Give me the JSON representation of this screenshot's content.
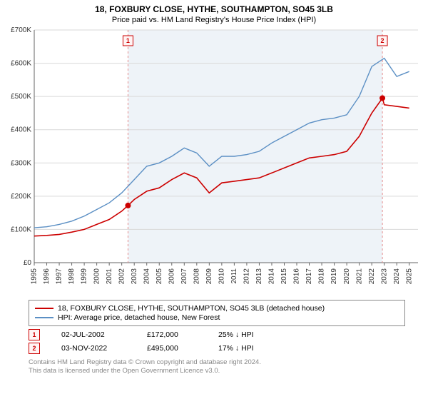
{
  "title_main": "18, FOXBURY CLOSE, HYTHE, SOUTHAMPTON, SO45 3LB",
  "title_sub": "Price paid vs. HM Land Registry's House Price Index (HPI)",
  "chart": {
    "type": "line",
    "background_color": "#ffffff",
    "shaded_band": {
      "x_start": 2002.5,
      "x_end": 2022.85,
      "color": "#eef3f8"
    },
    "grid_color": "#d9d9d9",
    "axis_color": "#666666",
    "axis_font_size": 10,
    "xlim": [
      1995,
      2025.7
    ],
    "x_ticks": [
      1995,
      1996,
      1997,
      1998,
      1999,
      2000,
      2001,
      2002,
      2003,
      2004,
      2005,
      2006,
      2007,
      2008,
      2009,
      2010,
      2011,
      2012,
      2013,
      2014,
      2015,
      2016,
      2017,
      2018,
      2019,
      2020,
      2021,
      2022,
      2023,
      2024,
      2025
    ],
    "ylim": [
      0,
      700000
    ],
    "y_ticks": [
      0,
      100000,
      200000,
      300000,
      400000,
      500000,
      600000,
      700000
    ],
    "y_tick_fmt_prefix": "£",
    "y_tick_fmt_suffix": "K",
    "y_tick_fmt_div": 1000,
    "series": [
      {
        "name": "price_paid",
        "label": "18, FOXBURY CLOSE, HYTHE, SOUTHAMPTON, SO45 3LB (detached house)",
        "color": "#cc0000",
        "line_width": 1.6,
        "x": [
          1995,
          1996,
          1997,
          1998,
          1999,
          2000,
          2001,
          2002,
          2002.5,
          2003,
          2004,
          2005,
          2006,
          2007,
          2008,
          2009,
          2010,
          2011,
          2012,
          2013,
          2014,
          2015,
          2016,
          2017,
          2018,
          2019,
          2020,
          2021,
          2022,
          2022.85,
          2023,
          2024,
          2025
        ],
        "y": [
          80000,
          82000,
          85000,
          92000,
          100000,
          115000,
          130000,
          155000,
          172000,
          190000,
          215000,
          225000,
          250000,
          270000,
          255000,
          210000,
          240000,
          245000,
          250000,
          255000,
          270000,
          285000,
          300000,
          315000,
          320000,
          325000,
          335000,
          380000,
          450000,
          495000,
          475000,
          470000,
          465000
        ]
      },
      {
        "name": "hpi",
        "label": "HPI: Average price, detached house, New Forest",
        "color": "#5b8fc4",
        "line_width": 1.4,
        "x": [
          1995,
          1996,
          1997,
          1998,
          1999,
          2000,
          2001,
          2002,
          2003,
          2004,
          2005,
          2006,
          2007,
          2008,
          2009,
          2010,
          2011,
          2012,
          2013,
          2014,
          2015,
          2016,
          2017,
          2018,
          2019,
          2020,
          2021,
          2022,
          2023,
          2024,
          2025
        ],
        "y": [
          105000,
          108000,
          115000,
          125000,
          140000,
          160000,
          180000,
          210000,
          250000,
          290000,
          300000,
          320000,
          345000,
          330000,
          290000,
          320000,
          320000,
          325000,
          335000,
          360000,
          380000,
          400000,
          420000,
          430000,
          435000,
          445000,
          500000,
          590000,
          615000,
          560000,
          575000
        ]
      }
    ],
    "markers": [
      {
        "n": "1",
        "x": 2002.5,
        "y": 172000,
        "vline": true
      },
      {
        "n": "2",
        "x": 2022.85,
        "y": 495000,
        "vline": true
      }
    ],
    "marker_color": "#cc0000",
    "marker_vline_color": "#e58a8a",
    "marker_box_bg": "#fff4f4"
  },
  "legend": {
    "rows": [
      {
        "color": "#cc0000",
        "label": "18, FOXBURY CLOSE, HYTHE, SOUTHAMPTON, SO45 3LB (detached house)"
      },
      {
        "color": "#5b8fc4",
        "label": "HPI: Average price, detached house, New Forest"
      }
    ]
  },
  "transactions": [
    {
      "n": "1",
      "date": "02-JUL-2002",
      "price": "£172,000",
      "pct": "25% ↓ HPI"
    },
    {
      "n": "2",
      "date": "03-NOV-2022",
      "price": "£495,000",
      "pct": "17% ↓ HPI"
    }
  ],
  "footer_line1": "Contains HM Land Registry data © Crown copyright and database right 2024.",
  "footer_line2": "This data is licensed under the Open Government Licence v3.0."
}
